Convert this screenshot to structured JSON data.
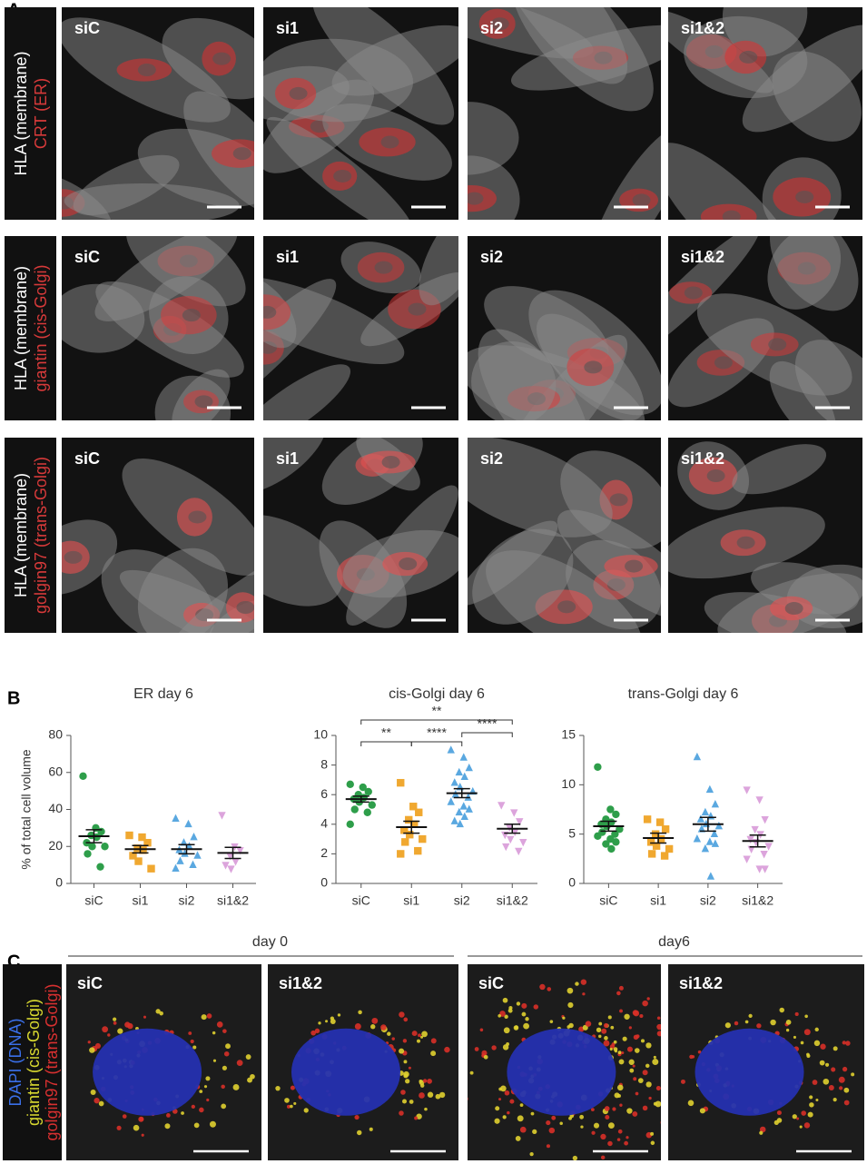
{
  "panel_labels": [
    "A",
    "B",
    "C"
  ],
  "panel_a": {
    "rows": [
      {
        "label_parts": [
          "HLA (membrane)",
          "CRT (ER)"
        ],
        "images": [
          "siC",
          "si1",
          "si2",
          "si1&2"
        ]
      },
      {
        "label_parts": [
          "HLA (membrane)",
          "giantin (cis-Golgi)"
        ],
        "images": [
          "siC",
          "si1",
          "si2",
          "si1&2"
        ]
      },
      {
        "label_parts": [
          "HLA (membrane)",
          "golgin97 (trans-Golgi)"
        ],
        "images": [
          "siC",
          "si1",
          "si2",
          "si1&2"
        ]
      }
    ]
  },
  "chart_data": [
    {
      "type": "strip",
      "title": "ER day 6",
      "y_label": "% of total cell volume",
      "categories": [
        "siC",
        "si1",
        "si2",
        "si1&2"
      ],
      "colors": [
        "#2e9e4a",
        "#f0a830",
        "#5aa8e0",
        "#dca4dc"
      ],
      "markers": [
        "circle",
        "square",
        "triangle-up",
        "triangle-down"
      ],
      "points": [
        [
          58,
          30,
          28,
          26,
          25,
          22,
          20,
          20,
          16,
          9
        ],
        [
          26,
          25,
          22,
          19,
          18,
          15,
          12,
          8
        ],
        [
          35,
          32,
          25,
          22,
          20,
          18,
          16,
          15,
          12,
          10,
          8
        ],
        [
          37,
          20,
          18,
          15,
          12,
          10,
          8
        ]
      ],
      "means": [
        25.5,
        18.5,
        18.5,
        16.5
      ],
      "sems": [
        3.5,
        2,
        2.5,
        3
      ],
      "ylim": [
        0,
        80
      ],
      "yticks": [
        0,
        20,
        40,
        60,
        80
      ],
      "significance": []
    },
    {
      "type": "strip",
      "title": "cis-Golgi  day 6",
      "categories": [
        "siC",
        "si1",
        "si2",
        "si1&2"
      ],
      "colors": [
        "#2e9e4a",
        "#f0a830",
        "#5aa8e0",
        "#dca4dc"
      ],
      "markers": [
        "circle",
        "square",
        "triangle-up",
        "triangle-down"
      ],
      "points": [
        [
          6.7,
          6.5,
          6.2,
          6.0,
          5.8,
          5.7,
          5.5,
          5.3,
          5.0,
          4.8,
          4.0
        ],
        [
          6.8,
          5.2,
          4.8,
          4.3,
          4.0,
          3.6,
          3.3,
          3.0,
          2.8,
          2.2,
          2.0
        ],
        [
          9.0,
          8.5,
          7.8,
          7.5,
          7.2,
          6.8,
          6.5,
          6.2,
          6.0,
          5.8,
          5.5,
          5.2,
          5.0,
          4.8,
          4.5,
          4.2,
          4.0
        ],
        [
          5.3,
          4.8,
          4.2,
          3.8,
          3.5,
          3.3,
          3.0,
          2.8,
          2.5,
          2.2
        ]
      ],
      "means": [
        5.7,
        3.8,
        6.1,
        3.7
      ],
      "sems": [
        0.2,
        0.4,
        0.3,
        0.3
      ],
      "ylim": [
        0,
        10
      ],
      "yticks": [
        0,
        2,
        4,
        6,
        8,
        10
      ],
      "significance": [
        {
          "from": 0,
          "to": 3,
          "label": "**"
        },
        {
          "from": 0,
          "to": 1,
          "label": "**"
        },
        {
          "from": 1,
          "to": 2,
          "label": "****"
        },
        {
          "from": 2,
          "to": 3,
          "label": "****"
        }
      ]
    },
    {
      "type": "strip",
      "title": "trans-Golgi day 6",
      "categories": [
        "siC",
        "si1",
        "si2",
        "si1&2"
      ],
      "colors": [
        "#2e9e4a",
        "#f0a830",
        "#5aa8e0",
        "#dca4dc"
      ],
      "markers": [
        "circle",
        "square",
        "triangle-up",
        "triangle-down"
      ],
      "points": [
        [
          11.8,
          7.5,
          7.0,
          6.5,
          6.2,
          6.0,
          5.8,
          5.5,
          5.2,
          5.0,
          4.8,
          4.5,
          4.2,
          4.0,
          3.5
        ],
        [
          6.5,
          6.2,
          5.5,
          5.0,
          4.5,
          4.2,
          3.8,
          3.5,
          3.0,
          2.8
        ],
        [
          12.8,
          9.5,
          8.0,
          7.2,
          6.8,
          6.5,
          6.0,
          5.8,
          5.5,
          5.0,
          4.5,
          4.2,
          4.0,
          3.5,
          0.7
        ],
        [
          9.5,
          8.5,
          6.5,
          5.5,
          5.0,
          4.5,
          4.2,
          3.8,
          3.5,
          3.0,
          2.5,
          1.5,
          1.5
        ]
      ],
      "means": [
        5.8,
        4.6,
        6.0,
        4.3
      ],
      "sems": [
        0.5,
        0.5,
        0.7,
        0.6
      ],
      "ylim": [
        0,
        15
      ],
      "yticks": [
        0,
        5,
        10,
        15
      ],
      "significance": []
    }
  ],
  "panel_c": {
    "label_parts": [
      "DAPI (DNA)",
      "giantin (cis-Golgi)",
      "golgin97 (trans-Golgi)"
    ],
    "groups": [
      {
        "label": "day 0",
        "images": [
          "siC",
          "si1&2"
        ]
      },
      {
        "label": "day6",
        "images": [
          "siC",
          "si1&2"
        ]
      }
    ]
  }
}
